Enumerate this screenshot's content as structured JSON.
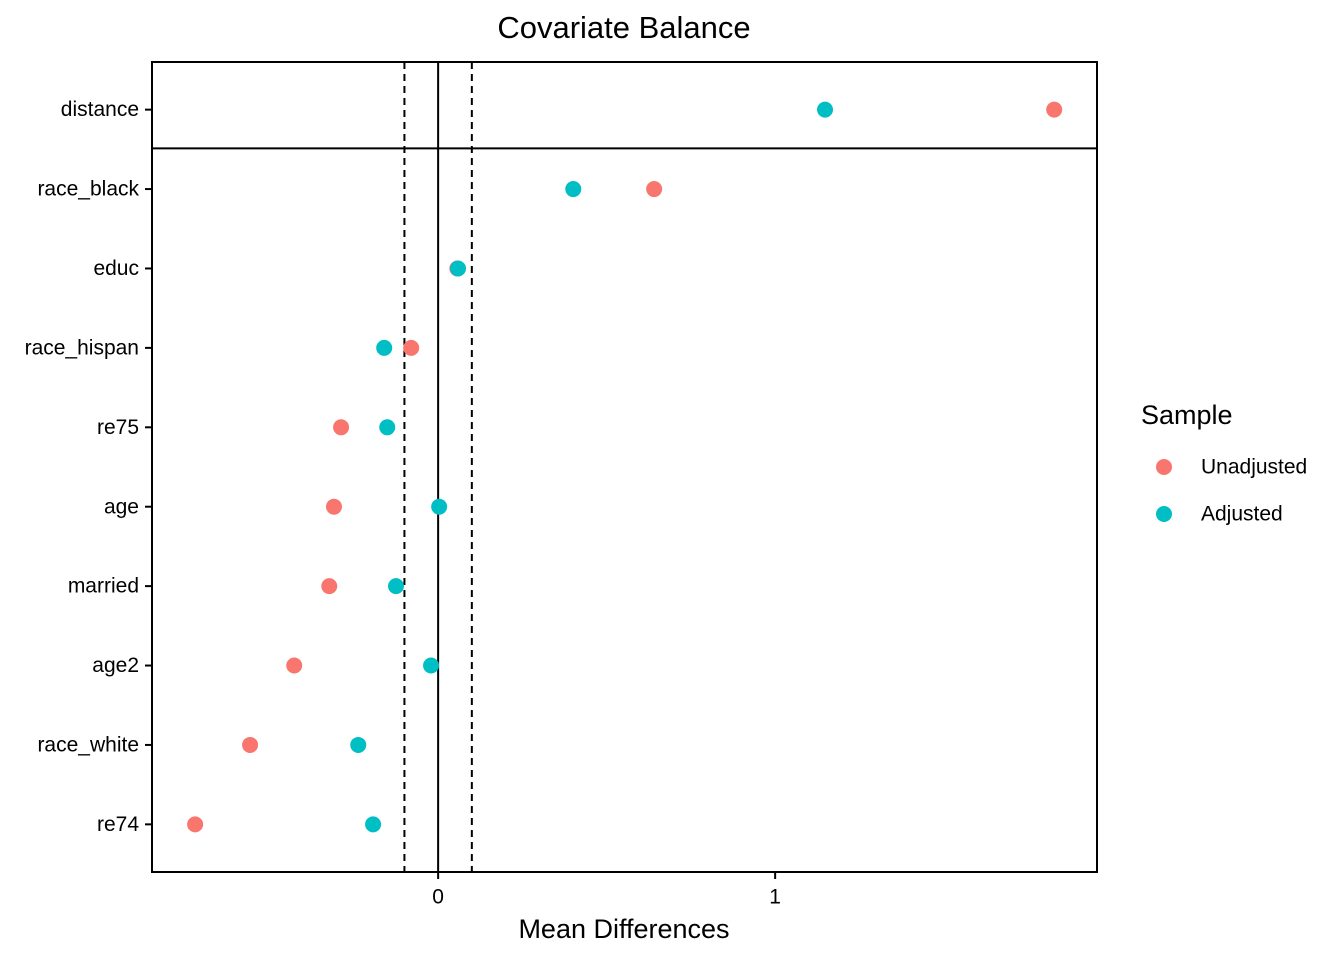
{
  "chart_data": {
    "type": "dot",
    "title": "Covariate Balance",
    "x_label": "Mean Differences",
    "categories": [
      "distance",
      "race_black",
      "educ",
      "race_hispan",
      "re75",
      "age",
      "married",
      "age2",
      "race_white",
      "re74"
    ],
    "series": [
      {
        "name": "Unadjusted",
        "color": "#F8766D",
        "values": [
          1.828,
          0.641,
          0.057,
          -0.08,
          -0.288,
          -0.309,
          -0.323,
          -0.427,
          -0.558,
          -0.721
        ]
      },
      {
        "name": "Adjusted",
        "color": "#00BFC4",
        "values": [
          1.148,
          0.401,
          0.059,
          -0.16,
          -0.151,
          0.003,
          -0.125,
          -0.021,
          -0.237,
          -0.193
        ]
      }
    ],
    "xlim": [
      -0.849,
      1.955
    ],
    "xticks": [
      0,
      1
    ],
    "thresholds": [
      -0.1,
      0.1
    ],
    "legend_title": "Sample",
    "legend_position": "right"
  }
}
